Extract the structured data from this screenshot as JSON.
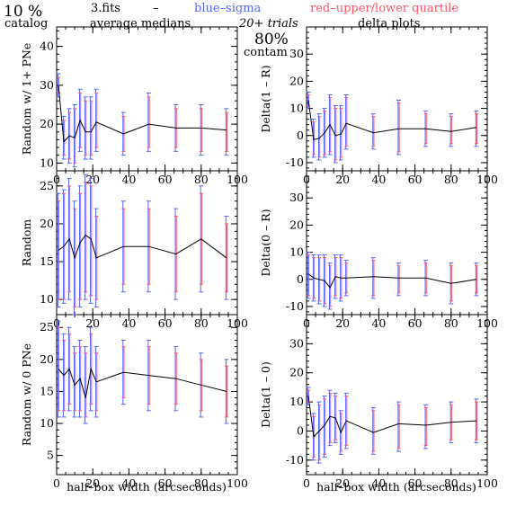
{
  "header": {
    "percent": "10 %",
    "catalog": "catalog",
    "file": "3.fits",
    "dash": "–",
    "blue_label": "blue–sigma",
    "red_label": "red–upper/lower quartile",
    "avg_medians": "average medians",
    "trials": "20+ trials",
    "delta_plots": "delta plots",
    "contam_value": "80%",
    "contam_label": "contam",
    "blue_color": "#5566ff",
    "red_color": "#ff5566"
  },
  "chart_data": [
    {
      "type": "line",
      "id": "top-left",
      "ylabel": "Random w/ 1+ PNe",
      "xlabel": "",
      "xlim": [
        0,
        100
      ],
      "ylim": [
        8,
        45
      ],
      "yticks": [
        10,
        20,
        30,
        40
      ],
      "xticks": [
        0,
        20,
        40,
        60,
        80,
        100
      ],
      "series": [
        {
          "x": [
            1,
            4,
            7,
            10,
            13,
            16,
            19,
            22,
            37,
            51,
            66,
            80,
            94
          ],
          "y": [
            30,
            15.5,
            17,
            16.5,
            21,
            18,
            18,
            20.5,
            17.5,
            20,
            19,
            19,
            18.5
          ],
          "err_sigma": [
            [
              27,
              33
            ],
            [
              11,
              22
            ],
            [
              10,
              24
            ],
            [
              9,
              25
            ],
            [
              13,
              29
            ],
            [
              11,
              27
            ],
            [
              11,
              27
            ],
            [
              13,
              29
            ],
            [
              12,
              23
            ],
            [
              13,
              28
            ],
            [
              13,
              25
            ],
            [
              12,
              25
            ],
            [
              12,
              24
            ]
          ],
          "err_quartile": [
            [
              28,
              32
            ],
            [
              12,
              21
            ],
            [
              11,
              23
            ],
            [
              10,
              24
            ],
            [
              14,
              28
            ],
            [
              12,
              26
            ],
            [
              12,
              26
            ],
            [
              14,
              28
            ],
            [
              13,
              22
            ],
            [
              14,
              27
            ],
            [
              14,
              24
            ],
            [
              13,
              24
            ],
            [
              13,
              23
            ]
          ]
        }
      ]
    },
    {
      "type": "line",
      "id": "top-right",
      "ylabel": "Delta(1 – R)",
      "xlabel": "",
      "xlim": [
        0,
        100
      ],
      "ylim": [
        -13,
        40
      ],
      "yticks": [
        -10,
        0,
        10,
        20,
        30
      ],
      "xticks": [
        0,
        20,
        40,
        60,
        80,
        100
      ],
      "series": [
        {
          "x": [
            1,
            4,
            7,
            10,
            13,
            16,
            19,
            22,
            37,
            51,
            66,
            80,
            94
          ],
          "y": [
            13,
            -1.5,
            -1,
            1,
            4,
            0,
            0.5,
            4.5,
            1,
            2.5,
            2.5,
            1.5,
            3
          ],
          "err_sigma": [
            [
              10,
              16
            ],
            [
              -8,
              6
            ],
            [
              -9,
              8
            ],
            [
              -8,
              10
            ],
            [
              -7,
              15
            ],
            [
              -10,
              11
            ],
            [
              -9,
              11
            ],
            [
              -5,
              15
            ],
            [
              -5,
              8
            ],
            [
              -7,
              13
            ],
            [
              -4,
              9
            ],
            [
              -4,
              8
            ],
            [
              -4,
              9
            ]
          ],
          "err_quartile": [
            [
              11,
              15
            ],
            [
              -7,
              5
            ],
            [
              -8,
              7
            ],
            [
              -7,
              9
            ],
            [
              -6,
              14
            ],
            [
              -9,
              10
            ],
            [
              -8,
              10
            ],
            [
              -4,
              14
            ],
            [
              -4,
              7
            ],
            [
              -6,
              12
            ],
            [
              -3,
              8
            ],
            [
              -3,
              7
            ],
            [
              -3,
              8
            ]
          ]
        }
      ]
    },
    {
      "type": "line",
      "id": "middle-left",
      "ylabel": "Random",
      "xlabel": "",
      "xlim": [
        0,
        100
      ],
      "ylim": [
        8,
        27
      ],
      "yticks": [
        10,
        15,
        20,
        25
      ],
      "xticks": [
        0,
        20,
        40,
        60,
        80,
        100
      ],
      "series": [
        {
          "x": [
            1,
            4,
            7,
            10,
            13,
            16,
            19,
            22,
            37,
            51,
            66,
            80,
            94
          ],
          "y": [
            16.5,
            17,
            18,
            15.5,
            17.5,
            18.5,
            18,
            15.5,
            17,
            17,
            16,
            18,
            15.5
          ],
          "err_sigma": [
            [
              9,
              24
            ],
            [
              9.5,
              24.5
            ],
            [
              10,
              26
            ],
            [
              8,
              23
            ],
            [
              9,
              25
            ],
            [
              10,
              26.5
            ],
            [
              9.5,
              26
            ],
            [
              9,
              22
            ],
            [
              11,
              23
            ],
            [
              11,
              23
            ],
            [
              10,
              22
            ],
            [
              11,
              25
            ],
            [
              10,
              21
            ]
          ],
          "err_quartile": [
            [
              10,
              23
            ],
            [
              10,
              24
            ],
            [
              11,
              25
            ],
            [
              9,
              22
            ],
            [
              10,
              24
            ],
            [
              11,
              25.5
            ],
            [
              10.5,
              25
            ],
            [
              10,
              21
            ],
            [
              12,
              22
            ],
            [
              12,
              22
            ],
            [
              11,
              21
            ],
            [
              12,
              24
            ],
            [
              11,
              20
            ]
          ]
        }
      ]
    },
    {
      "type": "line",
      "id": "middle-right",
      "ylabel": "Delta(0 – R)",
      "xlabel": "",
      "xlim": [
        0,
        100
      ],
      "ylim": [
        -13,
        40
      ],
      "yticks": [
        -10,
        0,
        10,
        20,
        30
      ],
      "xticks": [
        0,
        20,
        40,
        60,
        80,
        100
      ],
      "series": [
        {
          "x": [
            1,
            4,
            7,
            10,
            13,
            16,
            19,
            22,
            37,
            51,
            66,
            80,
            94
          ],
          "y": [
            2,
            0.5,
            0,
            -0.5,
            -3,
            1,
            0.5,
            0.5,
            1,
            0.5,
            0.5,
            -1.5,
            0
          ],
          "err_sigma": [
            [
              -7,
              10
            ],
            [
              -8,
              9
            ],
            [
              -9,
              9
            ],
            [
              -10,
              9
            ],
            [
              -11,
              6
            ],
            [
              -7,
              9
            ],
            [
              -8,
              9
            ],
            [
              -6,
              7
            ],
            [
              -7,
              8
            ],
            [
              -6,
              6
            ],
            [
              -6,
              7
            ],
            [
              -9,
              6
            ],
            [
              -6,
              6
            ]
          ],
          "err_quartile": [
            [
              -6,
              9
            ],
            [
              -7,
              8
            ],
            [
              -8,
              8
            ],
            [
              -9,
              8
            ],
            [
              -10,
              5
            ],
            [
              -6,
              8
            ],
            [
              -7,
              8
            ],
            [
              -5,
              6
            ],
            [
              -6,
              7
            ],
            [
              -5,
              5
            ],
            [
              -5,
              6
            ],
            [
              -8,
              5
            ],
            [
              -5,
              5
            ]
          ]
        }
      ]
    },
    {
      "type": "line",
      "id": "bottom-left",
      "ylabel": "Random w/ 0 PNe",
      "xlabel": "half–box width (arcseconds)",
      "xlim": [
        0,
        100
      ],
      "ylim": [
        2,
        27
      ],
      "yticks": [
        5,
        10,
        15,
        20,
        25
      ],
      "xticks": [
        0,
        20,
        40,
        60,
        80,
        100
      ],
      "series": [
        {
          "x": [
            1,
            4,
            7,
            10,
            13,
            16,
            19,
            22,
            37,
            51,
            66,
            80,
            94
          ],
          "y": [
            18.5,
            17.5,
            18.5,
            16,
            17,
            14,
            18.5,
            16.5,
            18,
            17.5,
            17,
            16,
            15
          ],
          "err_sigma": [
            [
              11,
              26
            ],
            [
              11,
              24
            ],
            [
              12,
              25
            ],
            [
              11,
              22
            ],
            [
              11,
              23
            ],
            [
              10,
              22
            ],
            [
              12,
              25
            ],
            [
              11,
              22
            ],
            [
              13,
              23
            ],
            [
              12,
              23
            ],
            [
              12,
              22
            ],
            [
              11,
              21
            ],
            [
              10,
              20
            ]
          ],
          "err_quartile": [
            [
              12,
              25
            ],
            [
              12,
              23
            ],
            [
              13,
              24
            ],
            [
              12,
              21
            ],
            [
              12,
              22
            ],
            [
              11,
              21
            ],
            [
              13,
              24
            ],
            [
              12,
              21
            ],
            [
              14,
              22
            ],
            [
              13,
              22
            ],
            [
              13,
              21
            ],
            [
              12,
              20
            ],
            [
              11,
              19
            ]
          ]
        }
      ]
    },
    {
      "type": "line",
      "id": "bottom-right",
      "ylabel": "Delta(1 – 0)",
      "xlabel": "half–box width (arcseconds)",
      "xlim": [
        0,
        100
      ],
      "ylim": [
        -15,
        40
      ],
      "yticks": [
        -10,
        0,
        10,
        20,
        30
      ],
      "xticks": [
        0,
        20,
        40,
        60,
        80,
        100
      ],
      "series": [
        {
          "x": [
            1,
            4,
            7,
            10,
            13,
            16,
            19,
            22,
            37,
            51,
            66,
            80,
            94
          ],
          "y": [
            12,
            -2,
            0,
            2,
            5,
            4.5,
            -0.5,
            3.5,
            -0.5,
            2.5,
            2,
            3,
            3.5
          ],
          "err_sigma": [
            [
              9,
              15
            ],
            [
              -10,
              6
            ],
            [
              -11,
              10
            ],
            [
              -9,
              12
            ],
            [
              -5,
              14
            ],
            [
              -4,
              13
            ],
            [
              -8,
              7
            ],
            [
              -6,
              13
            ],
            [
              -8,
              8
            ],
            [
              -7,
              10
            ],
            [
              -6,
              9
            ],
            [
              -4,
              10
            ],
            [
              -4,
              11
            ]
          ],
          "err_quartile": [
            [
              10,
              14
            ],
            [
              -9,
              5
            ],
            [
              -10,
              9
            ],
            [
              -8,
              11
            ],
            [
              -4,
              13
            ],
            [
              -3,
              12
            ],
            [
              -7,
              6
            ],
            [
              -5,
              12
            ],
            [
              -7,
              7
            ],
            [
              -6,
              9
            ],
            [
              -5,
              8
            ],
            [
              -3,
              9
            ],
            [
              -3,
              10
            ]
          ]
        }
      ]
    }
  ]
}
